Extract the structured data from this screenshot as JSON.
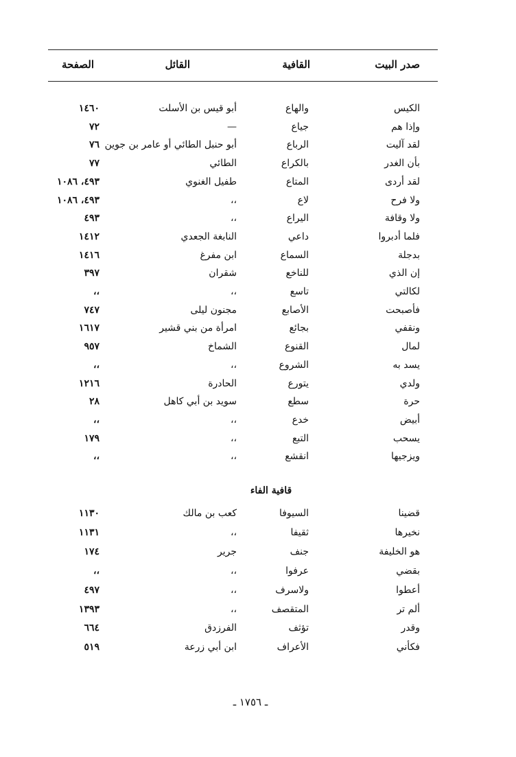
{
  "header": {
    "col_opening": "صدر البيت",
    "col_rhyme": "القافية",
    "col_poet": "القائل",
    "col_page": "الصفحة"
  },
  "rows_a": [
    {
      "opening": "الكيس",
      "rhyme": "والهاع",
      "poet": "أبو قيس بن الأسلت",
      "page": "١٤٦٠"
    },
    {
      "opening": "وإذا هم",
      "rhyme": "جياع",
      "poet": "—",
      "page": "٧٢"
    },
    {
      "opening": "لقد آليت",
      "rhyme": "الرباع",
      "poet": "أبو حنبل الطائي أو عامر بن جوين",
      "page": "٧٦"
    },
    {
      "opening": "بأن الغدر",
      "rhyme": "بالكراع",
      "poet": "الطائي",
      "page": "٧٧"
    },
    {
      "opening": "لقد أردى",
      "rhyme": "المتاع",
      "poet": "طفيل الغنوي",
      "page": "٤٩٣، ١٠٨٦"
    },
    {
      "opening": "ولا فرح",
      "rhyme": "لاع",
      "poet": "،،",
      "page": "٤٩٣، ١٠٨٦"
    },
    {
      "opening": "ولا وقافة",
      "rhyme": "اليراع",
      "poet": "،،",
      "page": "٤٩٣"
    },
    {
      "opening": "فلما أدبروا",
      "rhyme": "داعي",
      "poet": "النابغة الجعدي",
      "page": "١٤١٢"
    },
    {
      "opening": "بدجلة",
      "rhyme": "السماع",
      "poet": "ابن مفرغ",
      "page": "١٤١٦"
    },
    {
      "opening": "إن الذي",
      "rhyme": "للناخع",
      "poet": "شقران",
      "page": "٣٩٧"
    },
    {
      "opening": "لكالتي",
      "rhyme": "تاسع",
      "poet": "،،",
      "page": "،،"
    },
    {
      "opening": "فأصبحت",
      "rhyme": "الأصابع",
      "poet": "مجنون ليلى",
      "page": "٧٤٧"
    },
    {
      "opening": "ونقفي",
      "rhyme": "بجائع",
      "poet": "امرأة من بني قشير",
      "page": "١٦١٧"
    },
    {
      "opening": "لمال",
      "rhyme": "القنوع",
      "poet": "الشماخ",
      "page": "٩٥٧"
    },
    {
      "opening": "يسد به",
      "rhyme": "الشروع",
      "poet": "،،",
      "page": "،،"
    },
    {
      "opening": "ولدي",
      "rhyme": "يتورع",
      "poet": "الحادرة",
      "page": "١٢١٦"
    },
    {
      "opening": "حرة",
      "rhyme": "سطع",
      "poet": "سويد بن أبي كاهل",
      "page": "٢٨"
    },
    {
      "opening": "أبيض",
      "rhyme": "خدع",
      "poet": "،،",
      "page": "،،"
    },
    {
      "opening": "يسحب",
      "rhyme": "التبع",
      "poet": "،،",
      "page": "١٧٩"
    },
    {
      "opening": "ويزجيها",
      "rhyme": "انقشع",
      "poet": "،،",
      "page": "،،"
    }
  ],
  "section_title": "قافية الفاء",
  "rows_b": [
    {
      "opening": "قضينا",
      "rhyme": "السيوفا",
      "poet": "كعب بن مالك",
      "page": "١١٣٠"
    },
    {
      "opening": "نخيرها",
      "rhyme": "ثقيفا",
      "poet": "،،",
      "page": "١١٣١"
    },
    {
      "opening": "هو الخليفة",
      "rhyme": "جنف",
      "poet": "جرير",
      "page": "١٧٤"
    },
    {
      "opening": "بقضي",
      "rhyme": "عرفوا",
      "poet": "،،",
      "page": "،،"
    },
    {
      "opening": "أعطوا",
      "rhyme": "ولاسرف",
      "poet": "،،",
      "page": "٤٩٧"
    },
    {
      "opening": "ألم تر",
      "rhyme": "المتقصف",
      "poet": "،،",
      "page": "١٣٩٣"
    },
    {
      "opening": "وقدر",
      "rhyme": "تؤثف",
      "poet": "الفرزدق",
      "page": "٦٦٤"
    },
    {
      "opening": "فكأني",
      "rhyme": "الأعراف",
      "poet": "ابن أبي زرعة",
      "page": "٥١٩"
    }
  ],
  "page_number": "ـ ١٧٥٦ ـ"
}
